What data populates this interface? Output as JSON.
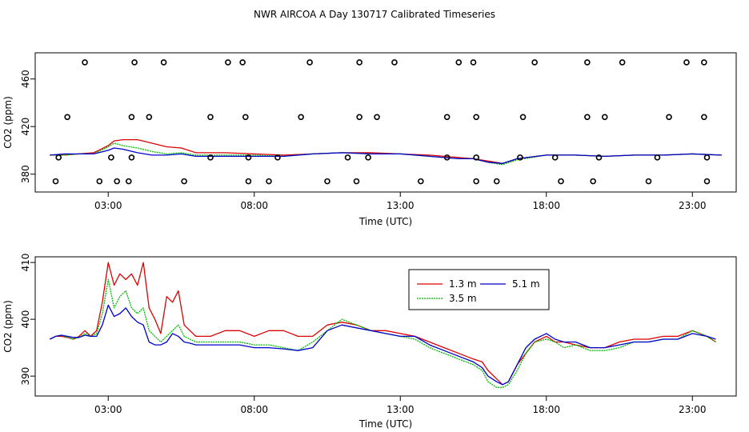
{
  "page_title": "NWR AIRCOA A  Day 130717  Calibrated Timeseries",
  "colors": {
    "s13": "#dd0000",
    "s35": "#00bb00",
    "s51": "#0000cc"
  },
  "chart_data": [
    {
      "type": "scatter",
      "title": "",
      "xlabel": "Time (UTC)",
      "ylabel": "CO2 (ppm)",
      "xlim": [
        0.5,
        24.5
      ],
      "ylim": [
        365,
        482
      ],
      "xticks": [
        3,
        8,
        13,
        18,
        23
      ],
      "xtick_labels": [
        "03:00",
        "08:00",
        "13:00",
        "18:00",
        "23:00"
      ],
      "yticks": [
        380,
        420,
        460
      ],
      "ytick_labels": [
        "380",
        "420",
        "460"
      ],
      "grid": false,
      "legend": "none",
      "lines": [
        {
          "key": "s13",
          "x": [
            1,
            1.5,
            2,
            2.5,
            3,
            3.2,
            3.5,
            4,
            4.5,
            5,
            5.5,
            6,
            7,
            8,
            9,
            10,
            11,
            12,
            13,
            14,
            15,
            15.5,
            16,
            16.5,
            17,
            18,
            19,
            20,
            21,
            22,
            23,
            24
          ],
          "y": [
            396,
            396,
            397,
            398,
            404,
            408,
            409,
            409,
            406,
            403,
            402,
            398,
            398,
            397,
            396,
            397,
            398,
            398,
            397,
            396,
            394,
            393,
            391,
            389,
            393,
            396,
            396,
            395,
            396,
            396,
            397,
            396
          ]
        },
        {
          "key": "s35",
          "x": [
            1,
            1.5,
            2,
            2.5,
            3,
            3.2,
            3.5,
            4,
            4.5,
            5,
            5.5,
            6,
            7,
            8,
            9,
            10,
            11,
            12,
            13,
            14,
            15,
            15.5,
            16,
            16.5,
            17,
            18,
            19,
            20,
            21,
            22,
            23,
            24
          ],
          "y": [
            396,
            396,
            397,
            397,
            403,
            406,
            404,
            402,
            399,
            397,
            398,
            396,
            396,
            396,
            395,
            397,
            398,
            397,
            397,
            395,
            393,
            393,
            390,
            388,
            392,
            396,
            396,
            395,
            396,
            396,
            397,
            396
          ]
        },
        {
          "key": "s51",
          "x": [
            1,
            1.5,
            2,
            2.5,
            3,
            3.2,
            3.5,
            4,
            4.5,
            5,
            5.5,
            6,
            7,
            8,
            9,
            10,
            11,
            12,
            13,
            14,
            15,
            15.5,
            16,
            16.5,
            17,
            18,
            19,
            20,
            21,
            22,
            23,
            24
          ],
          "y": [
            396,
            397,
            397,
            397,
            400,
            402,
            401,
            398,
            396,
            396,
            397,
            395,
            395,
            395,
            395,
            397,
            398,
            397,
            397,
            395,
            393,
            393,
            390,
            389,
            393,
            396,
            396,
            395,
            396,
            396,
            397,
            396
          ]
        }
      ],
      "points": [
        {
          "x": [
            2.2,
            3.9,
            4.9,
            7.1,
            7.6,
            9.9,
            11.6,
            12.8,
            15,
            15.5,
            17.6,
            19.4,
            20.6,
            22.8,
            23.4
          ],
          "y": [
            474,
            474,
            474,
            474,
            474,
            474,
            474,
            474,
            474,
            474,
            474,
            474,
            474,
            474,
            474
          ]
        },
        {
          "x": [
            1.6,
            3.8,
            4.4,
            6.5,
            7.7,
            9.6,
            11.6,
            12.2,
            14.6,
            15.6,
            17.2,
            19.4,
            20.0,
            22.2,
            23.4
          ],
          "y": [
            428,
            428,
            428,
            428,
            428,
            428,
            428,
            428,
            428,
            428,
            428,
            428,
            428,
            428,
            428
          ]
        },
        {
          "x": [
            1.2,
            2.7,
            3.3,
            3.7,
            5.6,
            7.8,
            8.5,
            10.5,
            11.5,
            13.7,
            15.6,
            16.3,
            18.5,
            19.6,
            21.5,
            23.5
          ],
          "y": [
            374,
            374,
            374,
            374,
            374,
            374,
            374,
            374,
            374,
            374,
            374,
            374,
            374,
            374,
            374,
            374
          ]
        },
        {
          "x": [
            1.3,
            3.1,
            3.8,
            6.5,
            7.8,
            8.8,
            11.2,
            11.9,
            14.6,
            15.6,
            17.1,
            18.3,
            19.8,
            21.8,
            23.5
          ],
          "y": [
            394,
            394,
            394,
            394,
            394,
            394,
            394,
            394,
            394,
            394,
            394,
            394,
            394,
            394,
            394
          ]
        }
      ]
    },
    {
      "type": "line",
      "title": "",
      "xlabel": "Time (UTC)",
      "ylabel": "CO2 (ppm)",
      "xlim": [
        0.5,
        24.5
      ],
      "ylim": [
        386.5,
        411
      ],
      "xticks": [
        3,
        8,
        13,
        18,
        23
      ],
      "xtick_labels": [
        "03:00",
        "08:00",
        "13:00",
        "18:00",
        "23:00"
      ],
      "yticks": [
        390,
        400,
        410
      ],
      "ytick_labels": [
        "390",
        "400",
        "410"
      ],
      "grid": false,
      "legend": "top-center",
      "series": [
        {
          "key": "s13",
          "name": "1.3 m",
          "x": [
            1,
            1.2,
            1.4,
            1.6,
            1.8,
            2,
            2.2,
            2.4,
            2.6,
            2.8,
            3,
            3.2,
            3.4,
            3.6,
            3.8,
            4,
            4.2,
            4.4,
            4.6,
            4.8,
            5,
            5.2,
            5.4,
            5.6,
            5.8,
            6,
            6.5,
            7,
            7.5,
            8,
            8.5,
            9,
            9.5,
            10,
            10.5,
            11,
            11.5,
            12,
            12.5,
            13,
            13.5,
            14,
            14.5,
            15,
            15.5,
            15.8,
            16,
            16.3,
            16.5,
            16.7,
            17,
            17.3,
            17.6,
            18,
            18.3,
            18.6,
            19,
            19.5,
            20,
            20.5,
            21,
            21.5,
            22,
            22.5,
            23,
            23.5,
            23.8
          ],
          "y": [
            396.5,
            397,
            397,
            396.8,
            396.5,
            397,
            398,
            397,
            398,
            403,
            410,
            406,
            408,
            407,
            408,
            406,
            410,
            402,
            400,
            397.5,
            404,
            403,
            405,
            399,
            398,
            397,
            397,
            398,
            398,
            397,
            398,
            398,
            397,
            397,
            399,
            399.5,
            399,
            398,
            398,
            397.5,
            397,
            396,
            395,
            394,
            393,
            392.5,
            391,
            389.5,
            388.5,
            389,
            392,
            394,
            396,
            397,
            396,
            396,
            395.5,
            395,
            395,
            396,
            396.5,
            396.5,
            397,
            397,
            398,
            397,
            396
          ]
        },
        {
          "key": "s35",
          "name": "3.5 m",
          "x": [
            1,
            1.2,
            1.4,
            1.6,
            1.8,
            2,
            2.2,
            2.4,
            2.6,
            2.8,
            3,
            3.2,
            3.4,
            3.6,
            3.8,
            4,
            4.2,
            4.4,
            4.6,
            4.8,
            5,
            5.2,
            5.4,
            5.6,
            5.8,
            6,
            6.5,
            7,
            7.5,
            8,
            8.5,
            9,
            9.5,
            10,
            10.5,
            11,
            11.5,
            12,
            12.5,
            13,
            13.5,
            14,
            14.5,
            15,
            15.5,
            15.8,
            16,
            16.3,
            16.5,
            16.7,
            17,
            17.3,
            17.6,
            18,
            18.3,
            18.6,
            19,
            19.5,
            20,
            20.5,
            21,
            21.5,
            22,
            22.5,
            23,
            23.5,
            23.8
          ],
          "y": [
            396.5,
            397,
            397.2,
            396.8,
            396.5,
            396.8,
            397.5,
            397,
            397.5,
            401,
            407,
            402,
            404,
            405,
            402,
            401,
            402,
            398,
            397,
            396,
            397,
            398,
            399,
            397,
            396.5,
            396,
            396,
            396,
            396,
            395.5,
            395.5,
            395,
            394.5,
            396,
            398,
            400,
            399,
            398,
            397.5,
            397,
            396.5,
            395,
            394,
            393,
            392,
            391,
            389,
            388,
            388,
            388.5,
            391,
            394,
            396,
            396.5,
            396,
            395,
            395.5,
            394.5,
            394.5,
            395,
            396,
            396,
            396.5,
            396.5,
            398,
            397,
            396
          ]
        },
        {
          "key": "s51",
          "name": "5.1 m",
          "x": [
            1,
            1.2,
            1.4,
            1.6,
            1.8,
            2,
            2.2,
            2.4,
            2.6,
            2.8,
            3,
            3.2,
            3.4,
            3.6,
            3.8,
            4,
            4.2,
            4.4,
            4.6,
            4.8,
            5,
            5.2,
            5.4,
            5.6,
            5.8,
            6,
            6.5,
            7,
            7.5,
            8,
            8.5,
            9,
            9.5,
            10,
            10.5,
            11,
            11.5,
            12,
            12.5,
            13,
            13.5,
            14,
            14.5,
            15,
            15.5,
            15.8,
            16,
            16.3,
            16.5,
            16.7,
            17,
            17.3,
            17.6,
            18,
            18.3,
            18.6,
            19,
            19.5,
            20,
            20.5,
            21,
            21.5,
            22,
            22.5,
            23,
            23.5,
            23.8
          ],
          "y": [
            396.5,
            397,
            397.2,
            397,
            396.8,
            396.8,
            397.2,
            397,
            397,
            399,
            402.5,
            400.5,
            401,
            402,
            400.5,
            399.5,
            399,
            396,
            395.5,
            395.5,
            396,
            397.5,
            397,
            396,
            395.8,
            395.5,
            395.5,
            395.5,
            395.5,
            395,
            395,
            394.8,
            394.5,
            395,
            398,
            399,
            398.5,
            398,
            397.5,
            397,
            397,
            395.5,
            394.5,
            393.5,
            392.5,
            391.5,
            390,
            389,
            388.5,
            389,
            392,
            395,
            396.5,
            397.5,
            396.5,
            396,
            396,
            395,
            395,
            395.5,
            396,
            396,
            396.5,
            396.5,
            397.5,
            397,
            396.5
          ]
        }
      ]
    }
  ]
}
